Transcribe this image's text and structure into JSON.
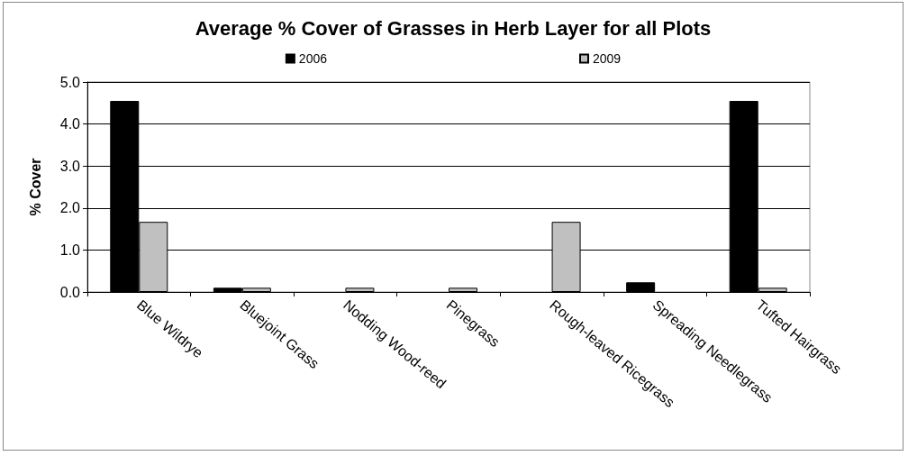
{
  "chart_data": {
    "type": "bar",
    "title": "Average % Cover of Grasses in Herb Layer for all Plots",
    "ylabel": "% Cover",
    "categories": [
      "Blue Wildrye",
      "Bluejoint Grass",
      "Nodding Wood-reed",
      "Pinegrass",
      "Rough-leaved Ricegrass",
      "Spreading Needlegrass",
      "Tufted Hairgrass"
    ],
    "series": [
      {
        "name": "2006",
        "color": "#000000",
        "values": [
          4.55,
          0.1,
          0,
          0,
          0,
          0.23,
          4.55
        ]
      },
      {
        "name": "2009",
        "color": "#c0c0c0",
        "values": [
          1.67,
          0.1,
          0.1,
          0.1,
          1.67,
          0,
          0.1
        ]
      }
    ],
    "ylim": [
      0,
      5
    ],
    "yticks": [
      {
        "value": 0,
        "label": "0.0"
      },
      {
        "value": 1,
        "label": "1.0"
      },
      {
        "value": 2,
        "label": "2.0"
      },
      {
        "value": 3,
        "label": "3.0"
      },
      {
        "value": 4,
        "label": "4.0"
      },
      {
        "value": 5,
        "label": "5.0"
      }
    ],
    "grid": "y",
    "legend": "top"
  }
}
